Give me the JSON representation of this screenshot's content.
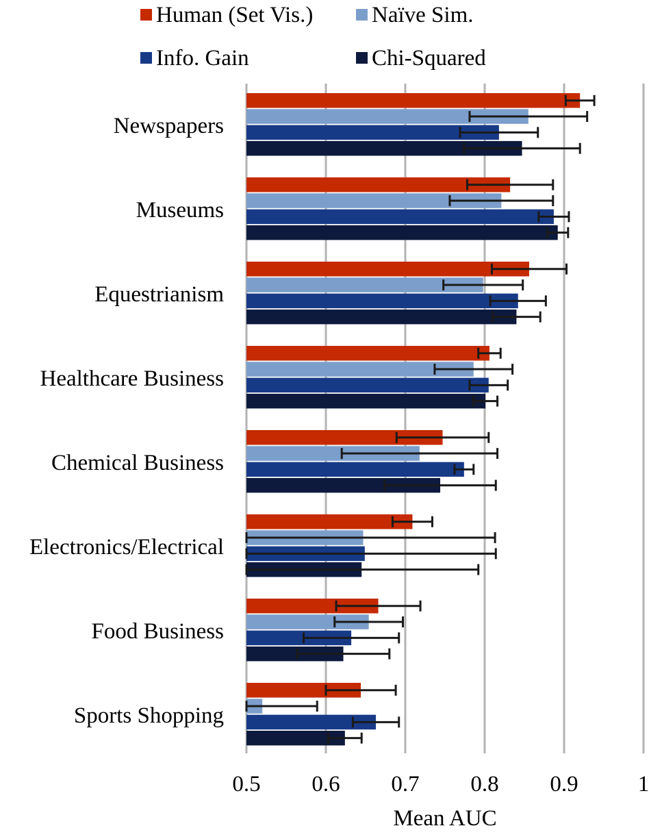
{
  "chart_data": {
    "type": "bar",
    "orientation": "horizontal",
    "xlabel": "Mean AUC",
    "xlim": [
      0.5,
      1.0
    ],
    "xticks": [
      "0.5",
      "0.6",
      "0.7",
      "0.8",
      "0.9",
      "1"
    ],
    "grid": "vertical",
    "legend_position": "top",
    "categories": [
      "Newspapers",
      "Museums",
      "Equestrianism",
      "Healthcare Business",
      "Chemical Business",
      "Electronics/Electrical",
      "Food Business",
      "Sports Shopping"
    ],
    "series": [
      {
        "name": "Human (Set Vis.)",
        "color": "#C62A00",
        "values": [
          0.92,
          0.832,
          0.856,
          0.806,
          0.747,
          0.709,
          0.666,
          0.644
        ],
        "errors": [
          0.018,
          0.054,
          0.047,
          0.014,
          0.058,
          0.025,
          0.053,
          0.044
        ]
      },
      {
        "name": "Naïve Sim.",
        "color": "#7C9ECB",
        "values": [
          0.855,
          0.821,
          0.798,
          0.786,
          0.718,
          0.647,
          0.654,
          0.52
        ],
        "errors": [
          0.074,
          0.065,
          0.05,
          0.049,
          0.098,
          0.166,
          0.043,
          0.069
        ]
      },
      {
        "name": "Info. Gain",
        "color": "#173A87",
        "values": [
          0.818,
          0.887,
          0.842,
          0.805,
          0.774,
          0.649,
          0.632,
          0.663
        ],
        "errors": [
          0.049,
          0.019,
          0.035,
          0.024,
          0.012,
          0.165,
          0.06,
          0.029
        ]
      },
      {
        "name": "Chi-Squared",
        "color": "#0D1A3D",
        "values": [
          0.847,
          0.892,
          0.84,
          0.801,
          0.744,
          0.645,
          0.622,
          0.624
        ],
        "errors": [
          0.073,
          0.013,
          0.03,
          0.015,
          0.07,
          0.147,
          0.058,
          0.021
        ]
      }
    ]
  }
}
